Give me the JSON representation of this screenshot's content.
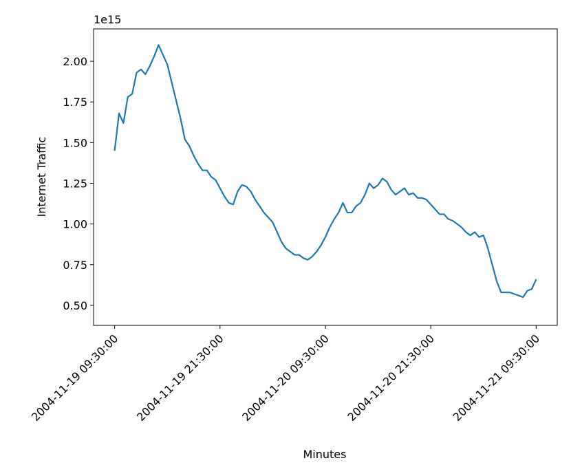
{
  "chart_data": {
    "type": "line",
    "xlabel": "Minutes",
    "ylabel": "Internet Traffic",
    "y_offset_label": "1e15",
    "color": "#1f77b4",
    "x": [
      "2004-11-19 09:30:00",
      "2004-11-19 10:00:00",
      "2004-11-19 10:30:00",
      "2004-11-19 11:00:00",
      "2004-11-19 11:30:00",
      "2004-11-19 12:00:00",
      "2004-11-19 12:30:00",
      "2004-11-19 13:00:00",
      "2004-11-19 13:30:00",
      "2004-11-19 14:00:00",
      "2004-11-19 14:30:00",
      "2004-11-19 15:00:00",
      "2004-11-19 15:30:00",
      "2004-11-19 16:00:00",
      "2004-11-19 16:30:00",
      "2004-11-19 17:00:00",
      "2004-11-19 17:30:00",
      "2004-11-19 18:00:00",
      "2004-11-19 18:30:00",
      "2004-11-19 19:00:00",
      "2004-11-19 19:30:00",
      "2004-11-19 20:00:00",
      "2004-11-19 20:30:00",
      "2004-11-19 21:00:00",
      "2004-11-19 21:30:00",
      "2004-11-19 22:00:00",
      "2004-11-19 22:30:00",
      "2004-11-19 23:00:00",
      "2004-11-19 23:30:00",
      "2004-11-20 00:00:00",
      "2004-11-20 00:30:00",
      "2004-11-20 01:00:00",
      "2004-11-20 01:30:00",
      "2004-11-20 02:00:00",
      "2004-11-20 02:30:00",
      "2004-11-20 03:00:00",
      "2004-11-20 03:30:00",
      "2004-11-20 04:00:00",
      "2004-11-20 04:30:00",
      "2004-11-20 05:00:00",
      "2004-11-20 05:30:00",
      "2004-11-20 06:00:00",
      "2004-11-20 06:30:00",
      "2004-11-20 07:00:00",
      "2004-11-20 07:30:00",
      "2004-11-20 08:00:00",
      "2004-11-20 08:30:00",
      "2004-11-20 09:00:00",
      "2004-11-20 09:30:00",
      "2004-11-20 10:00:00",
      "2004-11-20 10:30:00",
      "2004-11-20 11:00:00",
      "2004-11-20 11:30:00",
      "2004-11-20 12:00:00",
      "2004-11-20 12:30:00",
      "2004-11-20 13:00:00",
      "2004-11-20 13:30:00",
      "2004-11-20 14:00:00",
      "2004-11-20 14:30:00",
      "2004-11-20 15:00:00",
      "2004-11-20 15:30:00",
      "2004-11-20 16:00:00",
      "2004-11-20 16:30:00",
      "2004-11-20 17:00:00",
      "2004-11-20 17:30:00",
      "2004-11-20 18:00:00",
      "2004-11-20 18:30:00",
      "2004-11-20 19:00:00",
      "2004-11-20 19:30:00",
      "2004-11-20 20:00:00",
      "2004-11-20 20:30:00",
      "2004-11-20 21:00:00",
      "2004-11-20 21:30:00",
      "2004-11-20 22:00:00",
      "2004-11-20 22:30:00",
      "2004-11-20 23:00:00",
      "2004-11-20 23:30:00",
      "2004-11-21 00:00:00",
      "2004-11-21 00:30:00",
      "2004-11-21 01:00:00",
      "2004-11-21 01:30:00",
      "2004-11-21 02:00:00",
      "2004-11-21 02:30:00",
      "2004-11-21 03:00:00",
      "2004-11-21 03:30:00",
      "2004-11-21 04:00:00",
      "2004-11-21 04:30:00",
      "2004-11-21 05:00:00",
      "2004-11-21 05:30:00",
      "2004-11-21 06:00:00",
      "2004-11-21 06:30:00",
      "2004-11-21 07:00:00",
      "2004-11-21 07:30:00",
      "2004-11-21 08:00:00",
      "2004-11-21 08:30:00",
      "2004-11-21 09:00:00",
      "2004-11-21 09:30:00"
    ],
    "values": [
      1.45,
      1.68,
      1.62,
      1.78,
      1.8,
      1.93,
      1.95,
      1.92,
      1.97,
      2.03,
      2.1,
      2.04,
      1.98,
      1.87,
      1.76,
      1.65,
      1.52,
      1.48,
      1.42,
      1.37,
      1.33,
      1.33,
      1.29,
      1.27,
      1.22,
      1.17,
      1.13,
      1.12,
      1.2,
      1.24,
      1.23,
      1.2,
      1.15,
      1.11,
      1.07,
      1.04,
      1.01,
      0.95,
      0.89,
      0.85,
      0.83,
      0.81,
      0.81,
      0.79,
      0.78,
      0.8,
      0.83,
      0.87,
      0.92,
      0.98,
      1.03,
      1.07,
      1.13,
      1.07,
      1.07,
      1.11,
      1.13,
      1.18,
      1.25,
      1.22,
      1.24,
      1.28,
      1.26,
      1.21,
      1.18,
      1.2,
      1.22,
      1.18,
      1.19,
      1.16,
      1.16,
      1.15,
      1.12,
      1.09,
      1.06,
      1.06,
      1.03,
      1.02,
      1.0,
      0.98,
      0.95,
      0.93,
      0.95,
      0.92,
      0.93,
      0.85,
      0.75,
      0.65,
      0.58,
      0.58,
      0.58,
      0.57,
      0.56,
      0.55,
      0.59,
      0.6,
      0.66
    ],
    "xlim": [
      "2004-11-19 07:06:00",
      "2004-11-21 11:54:00"
    ],
    "xticks": [
      "2004-11-19 09:30:00",
      "2004-11-19 21:30:00",
      "2004-11-20 09:30:00",
      "2004-11-20 21:30:00",
      "2004-11-21 09:30:00"
    ],
    "ylim": [
      0.377,
      2.199
    ],
    "yticks": [
      {
        "value": 0.5,
        "label": "0.50"
      },
      {
        "value": 0.75,
        "label": "0.75"
      },
      {
        "value": 1.0,
        "label": "1.00"
      },
      {
        "value": 1.25,
        "label": "1.25"
      },
      {
        "value": 1.5,
        "label": "1.50"
      },
      {
        "value": 1.75,
        "label": "1.75"
      },
      {
        "value": 2.0,
        "label": "2.00"
      }
    ],
    "grid": false
  }
}
